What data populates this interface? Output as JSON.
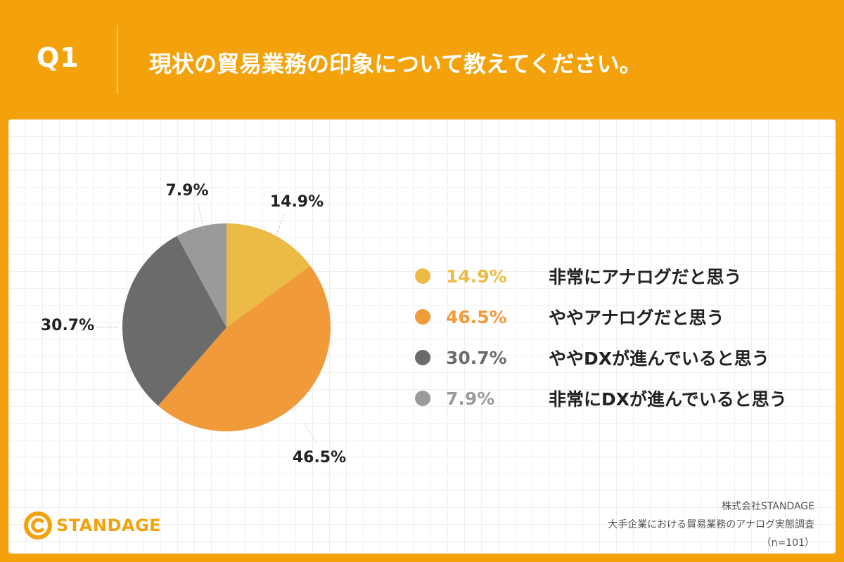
{
  "header": {
    "question_label": "Q1",
    "question_text": "現状の貿易業務の印象について教えてください。"
  },
  "chart_data": {
    "type": "pie",
    "title": "",
    "start_angle_deg": 0,
    "direction": "clockwise",
    "slices": [
      {
        "label": "非常にアナログだと思う",
        "value": 14.9,
        "display": "14.9%",
        "color": "#ECBB45"
      },
      {
        "label": "ややアナログだと思う",
        "value": 46.5,
        "display": "46.5%",
        "color": "#F09A3A"
      },
      {
        "label": "ややDXが進んでいると思う",
        "value": 30.7,
        "display": "30.7%",
        "color": "#6B6B6B"
      },
      {
        "label": "非常にDXが進んでいると思う",
        "value": 7.9,
        "display": "7.9%",
        "color": "#9A9A9A"
      }
    ],
    "legend_position": "right"
  },
  "legend": {
    "items": [
      {
        "pct": "14.9%",
        "label": "非常にアナログだと思う",
        "color": "#ECBB45"
      },
      {
        "pct": "46.5%",
        "label": "ややアナログだと思う",
        "color": "#F09A3A"
      },
      {
        "pct": "30.7%",
        "label": "ややDXが進んでいると思う",
        "color": "#6B6B6B"
      },
      {
        "pct": "7.9%",
        "label": "非常にDXが進んでいると思う",
        "color": "#9A9A9A"
      }
    ]
  },
  "footer": {
    "logo_text": "STANDAGE",
    "source_company": "株式会社STANDAGE",
    "source_survey": "大手企業における貿易業務のアナログ実態調査",
    "source_n": "（n=101）"
  },
  "colors": {
    "background": "#F4A20C",
    "panel": "#FFFFFF",
    "text": "#222222"
  }
}
